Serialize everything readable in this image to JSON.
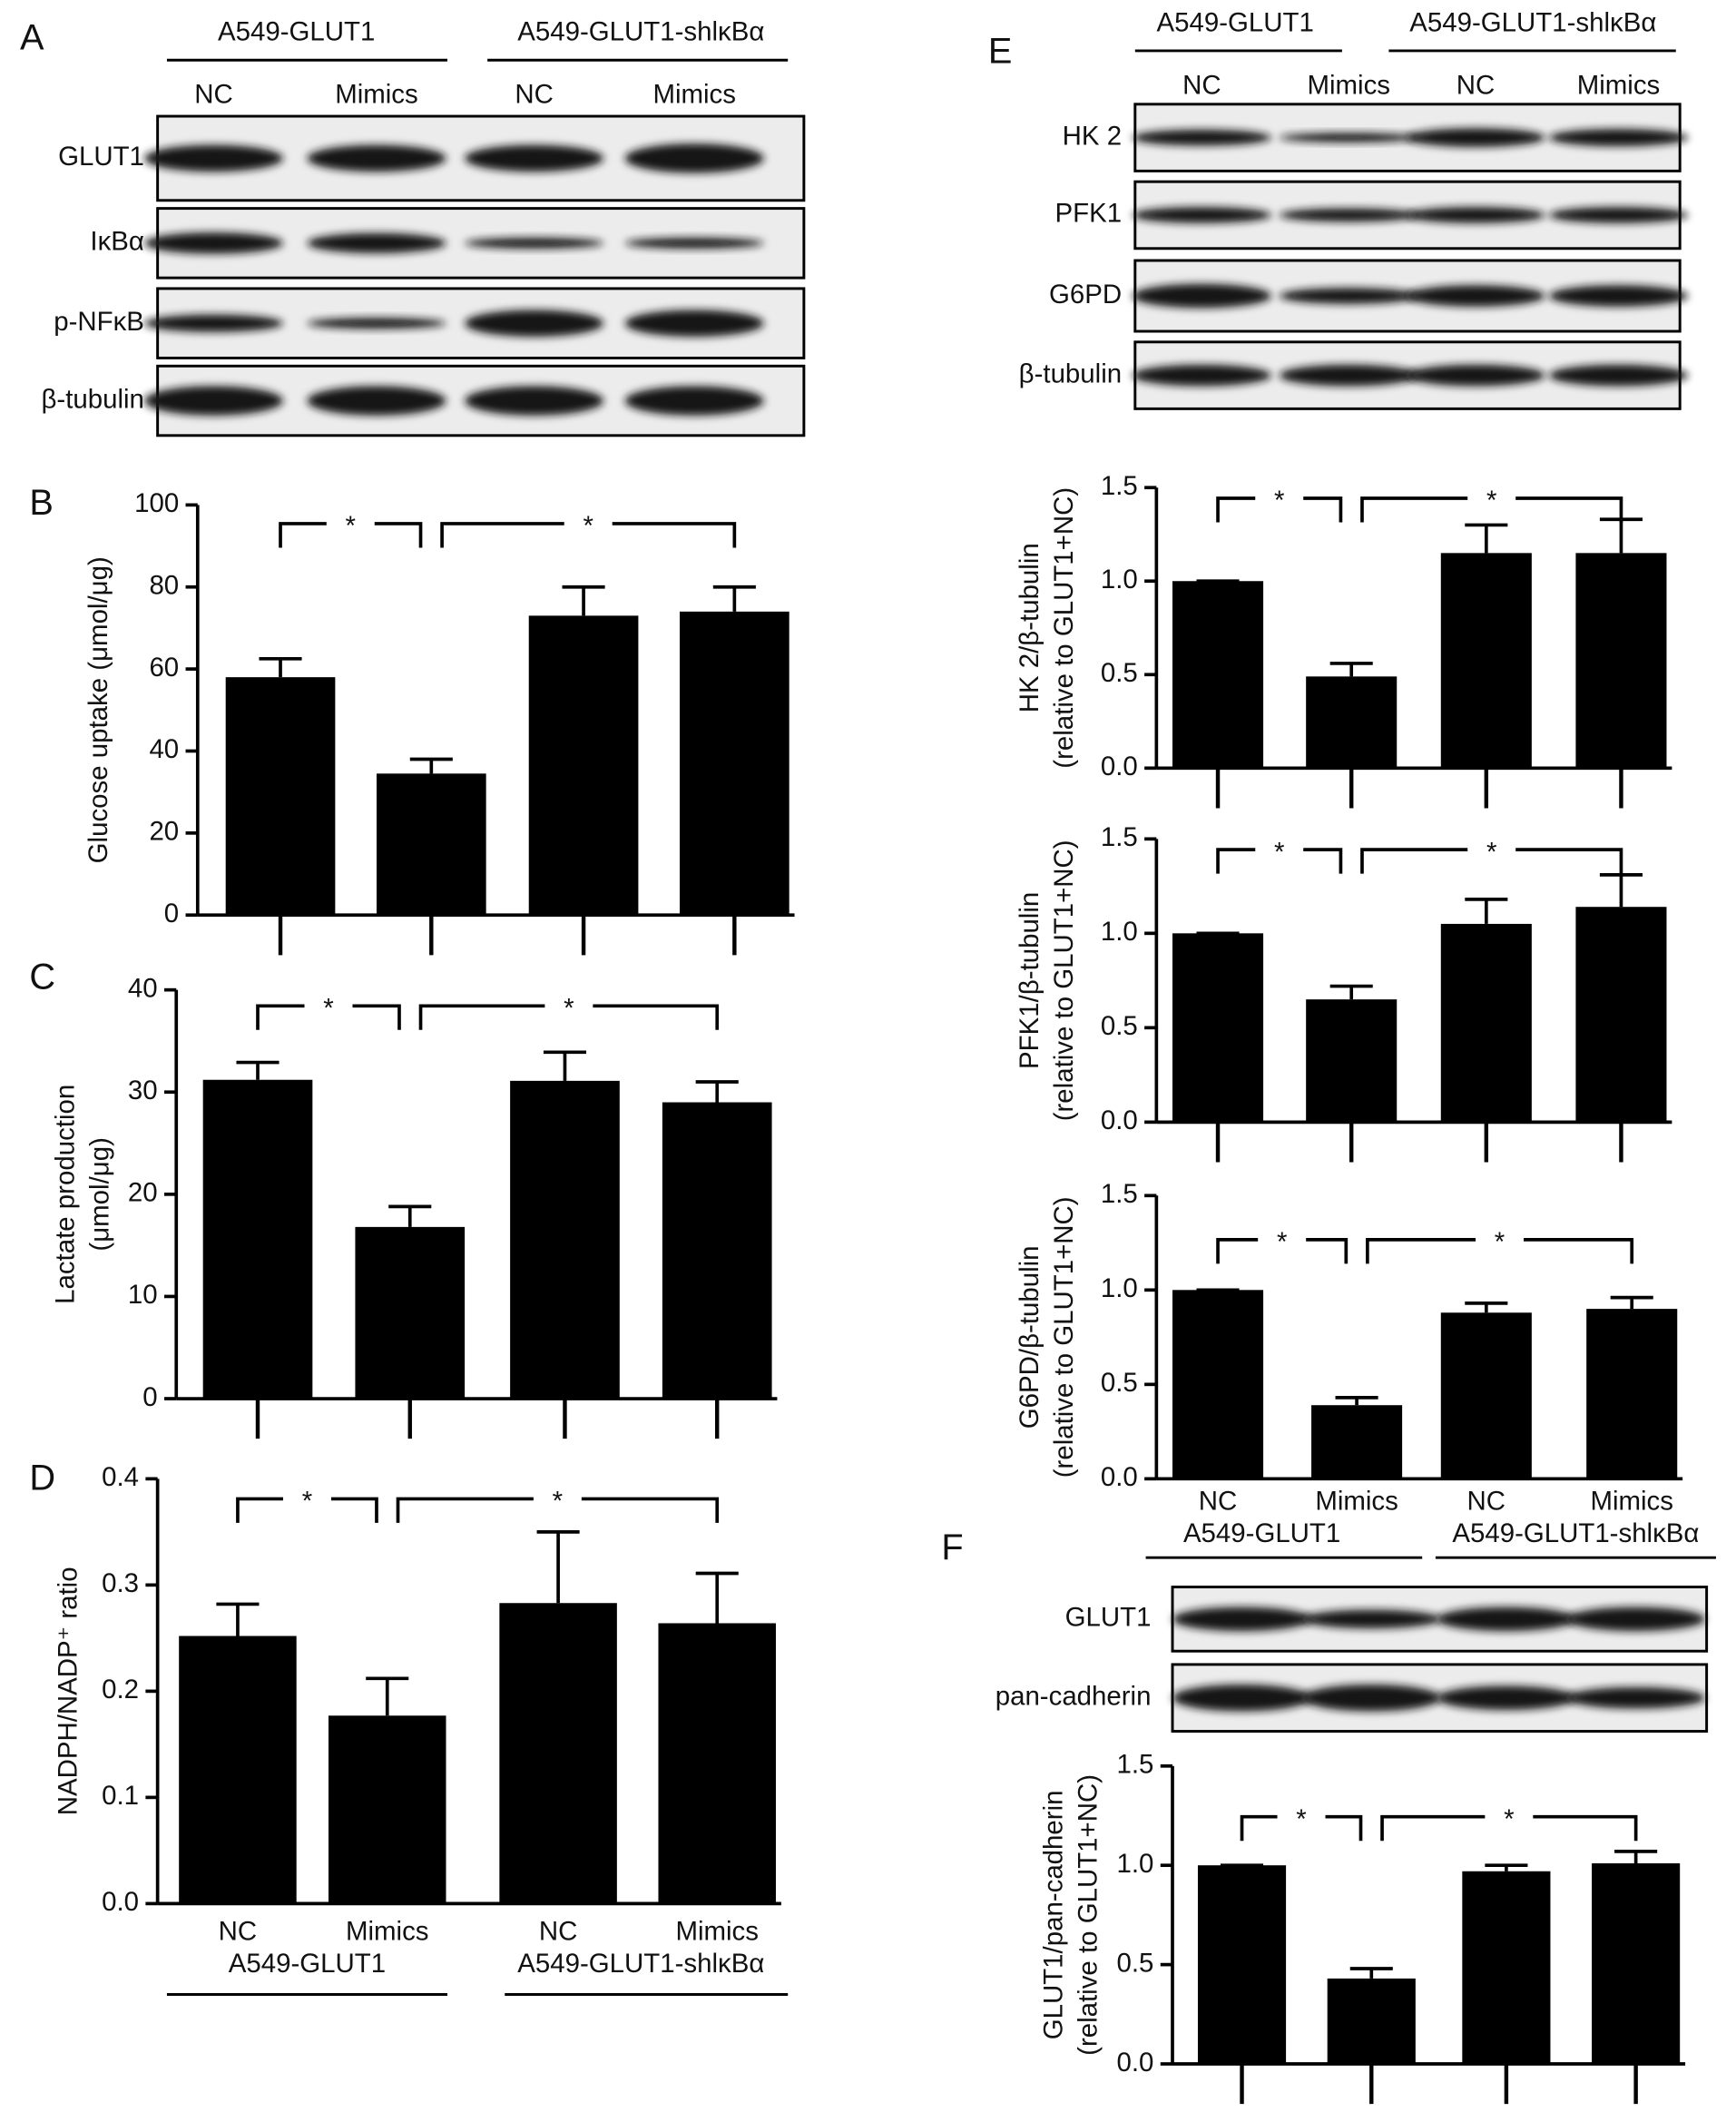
{
  "panel_labels": [
    "A",
    "B",
    "C",
    "D",
    "E",
    "F"
  ],
  "blots": [
    {
      "groups": [
        "A549-GLUT1",
        "A549-GLUT1-shlκBα"
      ],
      "lanes": [
        "NC",
        "Mimics",
        "NC",
        "Mimics"
      ],
      "rows": [
        "GLUT1",
        "IκBα",
        "p-NFκB",
        "β-tubulin"
      ]
    },
    {
      "groups": [
        "A549-GLUT1",
        "A549-GLUT1-shlκBα"
      ],
      "lanes": [
        "NC",
        "Mimics",
        "NC",
        "Mimics"
      ],
      "rows": [
        "HK 2",
        "PFK1",
        "G6PD",
        "β-tubulin"
      ]
    },
    {
      "rows": [
        "GLUT1",
        "pan-cadherin"
      ]
    }
  ],
  "chart_data": [
    {
      "type": "bar",
      "ylabel": [
        "Glucose uptake (μmol/μg)"
      ],
      "categories": [
        null,
        null,
        null,
        null
      ],
      "values": [
        58,
        34.5,
        73,
        74
      ],
      "errors": [
        4.5,
        3.5,
        7,
        6
      ],
      "color": "#000000",
      "ylim": [
        0,
        100
      ],
      "yticks": [
        0,
        20,
        40,
        60,
        80,
        100
      ],
      "annotations": [
        "*",
        "*"
      ]
    },
    {
      "type": "bar",
      "ylabel": [
        "Lactate production",
        "(μmol/μg)"
      ],
      "categories": [
        null,
        null,
        null,
        null
      ],
      "values": [
        31.2,
        16.8,
        31.1,
        29
      ],
      "errors": [
        1.7,
        2,
        2.8,
        2
      ],
      "color": "#000000",
      "ylim": [
        0,
        40
      ],
      "yticks": [
        0,
        10,
        20,
        30,
        40
      ],
      "annotations": [
        "*",
        "*"
      ]
    },
    {
      "type": "bar",
      "ylabel": [
        "NADPH/NADP⁺ ratio"
      ],
      "categories": [
        "NC",
        "Mimics",
        "NC",
        "Mimics"
      ],
      "groups": [
        "A549-GLUT1",
        "A549-GLUT1-shlκBα"
      ],
      "values": [
        0.252,
        0.177,
        0.283,
        0.264
      ],
      "errors": [
        0.03,
        0.035,
        0.067,
        0.047
      ],
      "color": "#000000",
      "ylim": [
        0,
        0.4
      ],
      "yticks": [
        {
          "value": 0,
          "label": "0.0"
        },
        0.1,
        0.2,
        0.3,
        0.4
      ],
      "annotations": [
        "*",
        "*"
      ]
    },
    {
      "type": "bar",
      "ylabel": [
        "HK 2/β-tubulin",
        "(relative to GLUT1+NC)"
      ],
      "categories": [
        null,
        null,
        null,
        null
      ],
      "values": [
        1.0,
        0.49,
        1.15,
        1.15
      ],
      "errors": [
        0,
        0.07,
        0.15,
        0.18
      ],
      "color": "#000000",
      "ylim": [
        0,
        1.5
      ],
      "yticks": [
        {
          "value": 0,
          "label": "0.0"
        },
        0.5,
        {
          "value": 1,
          "label": "1.0"
        },
        1.5
      ],
      "annotations": [
        "*",
        "*"
      ]
    },
    {
      "type": "bar",
      "ylabel": [
        "PFK1/β-tubulin",
        "(relative to GLUT1+NC)"
      ],
      "categories": [
        null,
        null,
        null,
        null
      ],
      "values": [
        1.0,
        0.65,
        1.05,
        1.14
      ],
      "errors": [
        0,
        0.07,
        0.13,
        0.17
      ],
      "color": "#000000",
      "ylim": [
        0,
        1.5
      ],
      "yticks": [
        {
          "value": 0,
          "label": "0.0"
        },
        0.5,
        {
          "value": 1,
          "label": "1.0"
        },
        1.5
      ],
      "annotations": [
        "*",
        "*"
      ]
    },
    {
      "type": "bar",
      "ylabel": [
        "G6PD/β-tubulin",
        "(relative to GLUT1+NC)"
      ],
      "categories": [
        "NC",
        "Mimics",
        "NC",
        "Mimics"
      ],
      "groups": [
        "A549-GLUT1",
        "A549-GLUT1-shlκBα"
      ],
      "values": [
        1.0,
        0.39,
        0.88,
        0.9
      ],
      "errors": [
        0,
        0.04,
        0.05,
        0.06
      ],
      "color": "#000000",
      "ylim": [
        0,
        1.5
      ],
      "yticks": [
        {
          "value": 0,
          "label": "0.0"
        },
        0.5,
        {
          "value": 1,
          "label": "1.0"
        },
        1.5
      ],
      "annotations": [
        "*",
        "*"
      ]
    },
    {
      "type": "bar",
      "ylabel": [
        "GLUT1/pan-cadherin",
        "(relative to GLUT1+NC)"
      ],
      "categories": [
        null,
        null,
        null,
        null
      ],
      "values": [
        1.0,
        0.43,
        0.97,
        1.01
      ],
      "errors": [
        0,
        0.05,
        0.03,
        0.06
      ],
      "color": "#000000",
      "ylim": [
        0,
        1.5
      ],
      "yticks": [
        {
          "value": 0,
          "label": "0.0"
        },
        0.5,
        {
          "value": 1,
          "label": "1.0"
        },
        1.5
      ],
      "annotations": [
        "*",
        "*"
      ]
    }
  ]
}
